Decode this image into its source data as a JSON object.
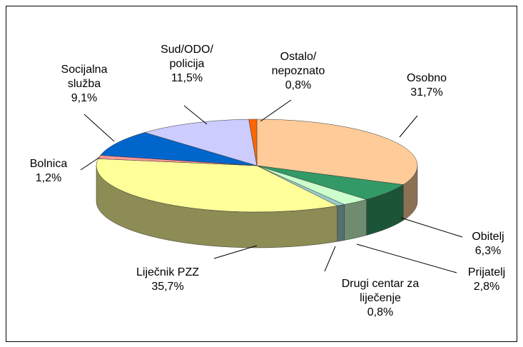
{
  "chart_data": {
    "type": "pie3d",
    "categories": [
      "Osobno",
      "Obitelj",
      "Prijatelj",
      "Drugi centar za\nliječenje",
      "Liječnik PZZ",
      "Bolnica",
      "Socijalna\nslužba",
      "Sud/ODO/\npolicija",
      "Ostalo/\nnepoznato"
    ],
    "values": [
      31.7,
      6.3,
      2.8,
      0.8,
      35.7,
      1.2,
      9.1,
      11.5,
      0.8
    ],
    "value_labels": [
      "31,7%",
      "6,3%",
      "2,8%",
      "0,8%",
      "35,7%",
      "1,2%",
      "9,1%",
      "11,5%",
      "0,8%"
    ],
    "colors": [
      "#FFCC99",
      "#339966",
      "#CCFFCC",
      "#99CCCC",
      "#FFFF99",
      "#FF9999",
      "#0066CC",
      "#CCCCFF",
      "#FF6600"
    ]
  }
}
